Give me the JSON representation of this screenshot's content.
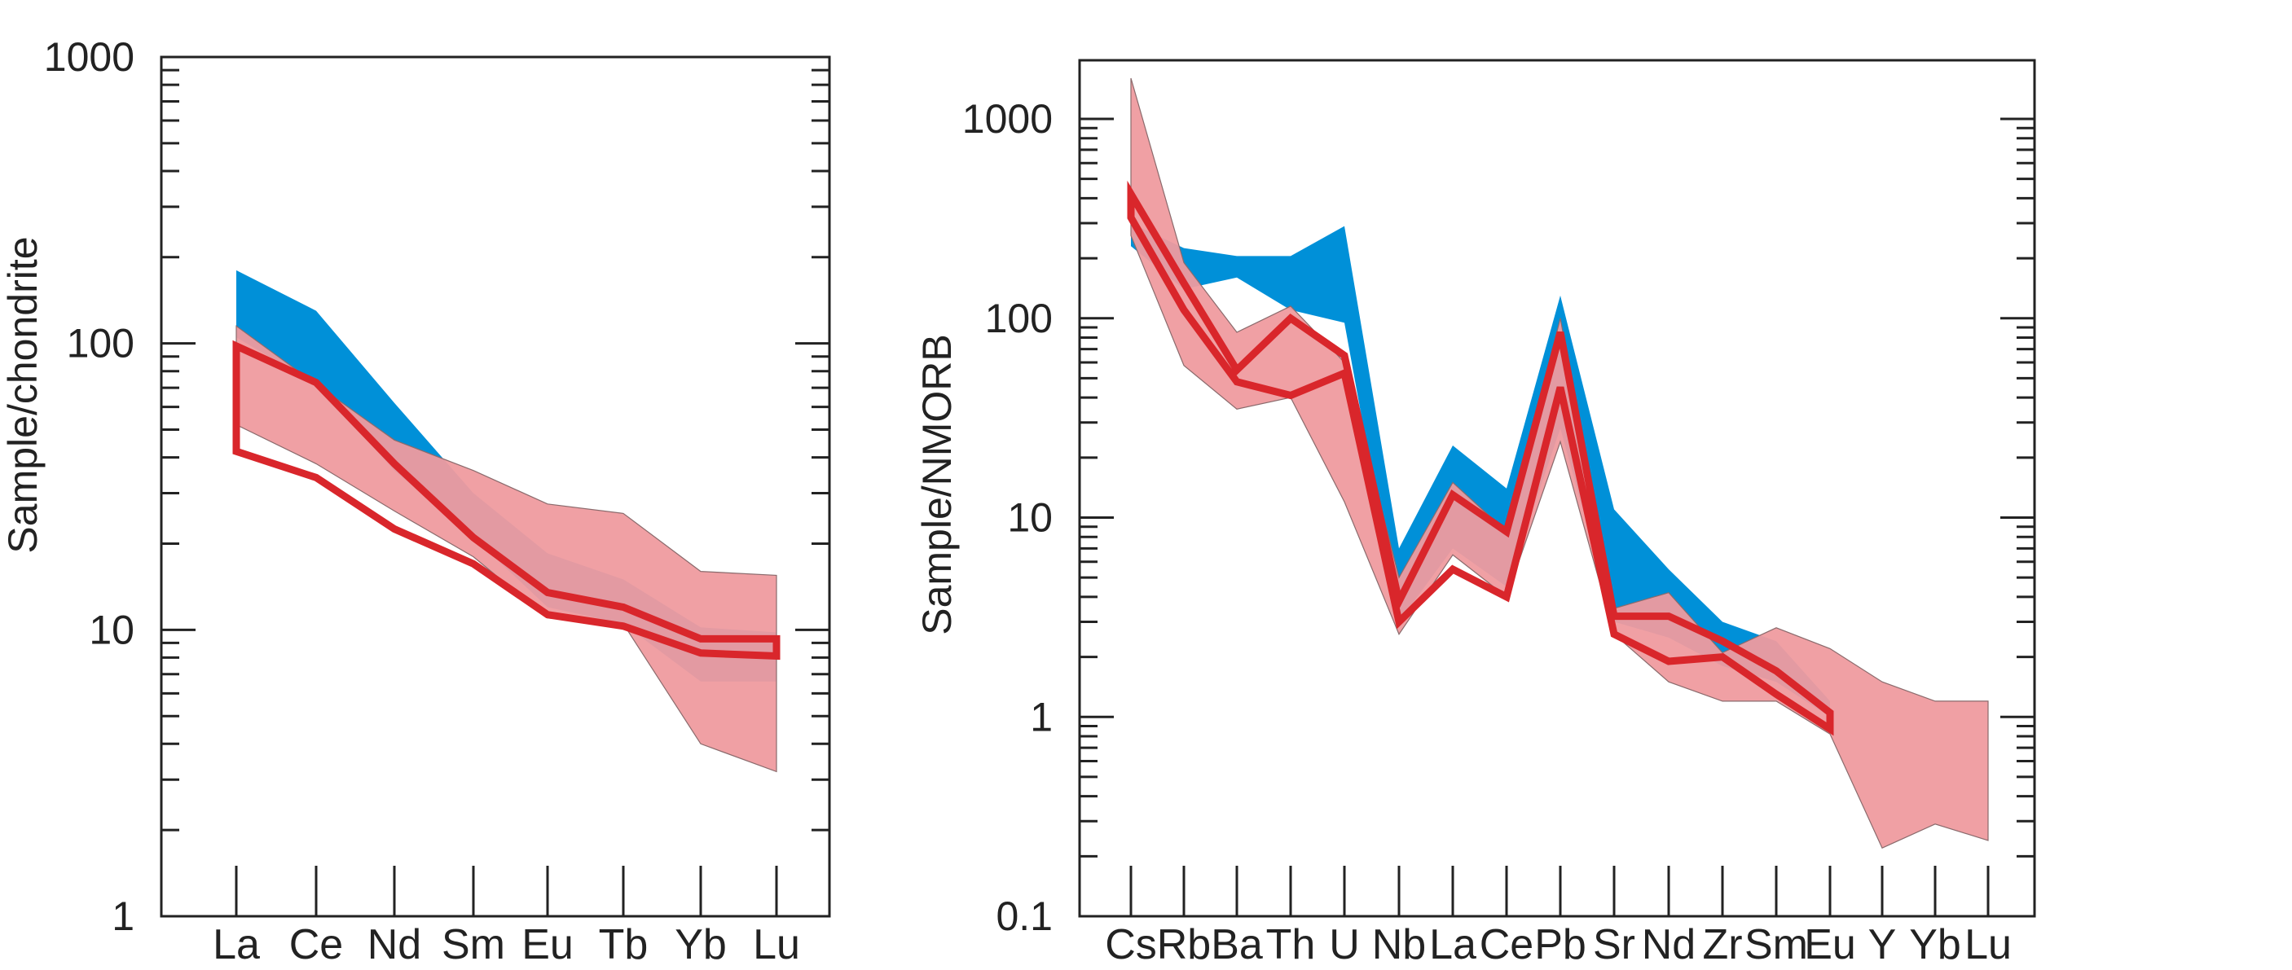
{
  "colors": {
    "blue_field": "#0090d8",
    "pink_field": "#ef9b9f",
    "red_outline": "#d9262b",
    "axis": "#222222"
  },
  "chart_data": [
    {
      "type": "area",
      "scale": "log",
      "ylabel": "Sample/chondrite",
      "ylim": [
        1,
        1000
      ],
      "ticks": [
        "1",
        "10",
        "100",
        "1000"
      ],
      "categories": [
        "La",
        "Ce",
        "Nd",
        "Sm",
        "Eu",
        "Tb",
        "Yb",
        "Lu"
      ],
      "series": [
        {
          "kind": "field",
          "color": "blue",
          "categories": [
            "La",
            "Ce",
            "Nd",
            "Sm",
            "Eu",
            "Tb",
            "Yb",
            "Lu"
          ],
          "upper": [
            180,
            130,
            62,
            30,
            18.5,
            15,
            10.2,
            9.8
          ],
          "lower": [
            105,
            72,
            36,
            21,
            12,
            10.5,
            6.6,
            6.6
          ]
        },
        {
          "kind": "field",
          "color": "pink",
          "categories": [
            "La",
            "Ce",
            "Nd",
            "Sm",
            "Eu",
            "Tb",
            "Yb",
            "Lu"
          ],
          "upper": [
            115,
            72,
            46,
            36,
            27.5,
            25.5,
            16,
            15.5
          ],
          "lower": [
            52,
            38,
            26,
            18,
            11,
            10.5,
            4,
            3.2
          ]
        },
        {
          "kind": "outline",
          "color": "red",
          "categories": [
            "La",
            "Ce",
            "Nd",
            "Sm",
            "Eu",
            "Tb",
            "Yb",
            "Lu"
          ],
          "upper": [
            98,
            73,
            38,
            21,
            13.5,
            12,
            9.3,
            9.3
          ],
          "lower": [
            42,
            34,
            22.5,
            17,
            11.3,
            10.3,
            8.3,
            8.1
          ]
        }
      ]
    },
    {
      "type": "area",
      "scale": "log",
      "ylabel": "Sample/NMORB",
      "ylim": [
        0.1,
        2000
      ],
      "ticks": [
        "0.1",
        "1",
        "10",
        "100",
        "1000"
      ],
      "categories": [
        "Cs",
        "Rb",
        "Ba",
        "Th",
        "U",
        "Nb",
        "La",
        "Ce",
        "Pb",
        "Sr",
        "Nd",
        "Zr",
        "Sm",
        "Eu",
        "Y",
        "Yb",
        "Lu"
      ],
      "series": [
        {
          "kind": "field",
          "color": "blue",
          "categories": [
            "Cs",
            "Rb",
            "Ba",
            "Th",
            "U",
            "Nb",
            "La",
            "Ce",
            "Pb",
            "Sr",
            "Nd",
            "Zr",
            "Sm",
            "Eu"
          ],
          "upper": [
            300,
            225,
            205,
            205,
            290,
            7,
            23,
            14,
            130,
            11,
            5.5,
            3,
            2.4,
            1.2
          ],
          "lower": [
            230,
            140,
            160,
            110,
            95,
            3,
            7,
            4.5,
            28,
            3,
            2.5,
            1.8,
            1.5,
            1.0
          ]
        },
        {
          "kind": "field",
          "color": "pink",
          "categories": [
            "Cs",
            "Rb",
            "Ba",
            "Th",
            "U",
            "Nb",
            "La",
            "Ce",
            "Pb",
            "Sr",
            "Nd",
            "Zr",
            "Sm",
            "Eu",
            "Y",
            "Yb",
            "Lu"
          ],
          "upper": [
            1600,
            190,
            85,
            115,
            60,
            5,
            15,
            8.5,
            100,
            3.5,
            4.2,
            2.1,
            2.8,
            2.2,
            1.5,
            1.2,
            1.2
          ],
          "lower": [
            260,
            58,
            35,
            40,
            12,
            2.6,
            6.5,
            4,
            24,
            2.6,
            1.5,
            1.2,
            1.2,
            0.82,
            0.22,
            0.29,
            0.24
          ]
        },
        {
          "kind": "outline",
          "color": "red",
          "categories": [
            "Cs",
            "Rb",
            "Ba",
            "Th",
            "U",
            "Nb",
            "La",
            "Ce",
            "Pb",
            "Sr",
            "Nd",
            "Zr",
            "Sm",
            "Eu"
          ],
          "upper": [
            420,
            150,
            55,
            100,
            65,
            3.8,
            13,
            8.5,
            85,
            3.2,
            3.2,
            2.4,
            1.7,
            1.05
          ],
          "lower": [
            320,
            110,
            48,
            41,
            53,
            3.0,
            5.5,
            4.0,
            45,
            2.6,
            1.9,
            2.0,
            1.3,
            0.87
          ]
        }
      ]
    }
  ]
}
